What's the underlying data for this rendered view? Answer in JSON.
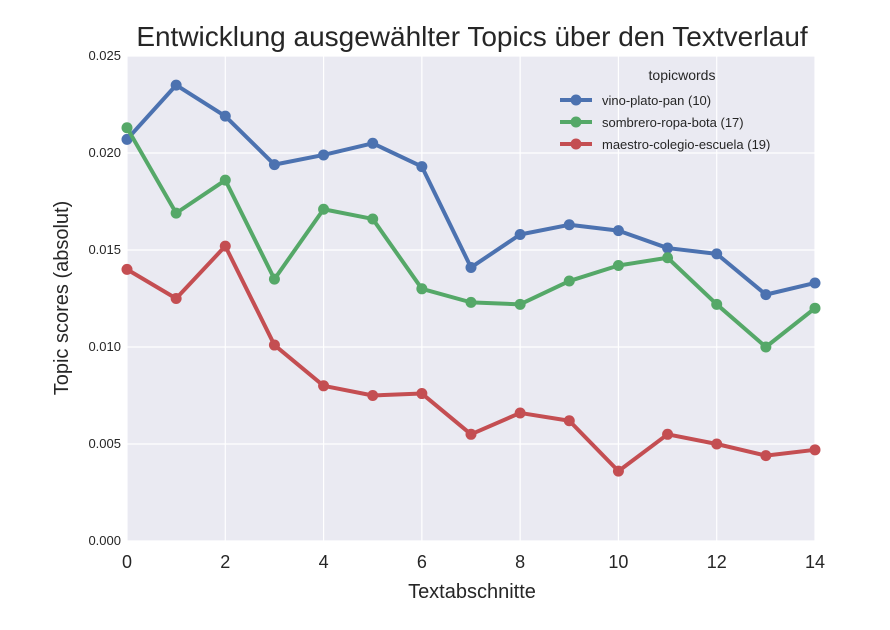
{
  "chart_data": {
    "type": "line",
    "title": "Entwicklung ausgewählter Topics über den Textverlauf",
    "xlabel": "Textabschnitte",
    "ylabel": "Topic scores (absolut)",
    "xlim": [
      0,
      14
    ],
    "ylim": [
      0.0,
      0.025
    ],
    "x": [
      0,
      1,
      2,
      3,
      4,
      5,
      6,
      7,
      8,
      9,
      10,
      11,
      12,
      13,
      14
    ],
    "xticks": [
      0,
      2,
      4,
      6,
      8,
      10,
      12,
      14
    ],
    "yticks": [
      0.0,
      0.005,
      0.01,
      0.015,
      0.02,
      0.025
    ],
    "ytick_labels": [
      "0.000",
      "0.005",
      "0.010",
      "0.015",
      "0.020",
      "0.025"
    ],
    "grid": true,
    "legend": {
      "title": "topicwords",
      "placement": "top-right"
    },
    "series": [
      {
        "name": "vino-plato-pan (10)",
        "color": "#4c72b0",
        "values": [
          0.0207,
          0.0235,
          0.0219,
          0.0194,
          0.0199,
          0.0205,
          0.0193,
          0.0141,
          0.0158,
          0.0163,
          0.016,
          0.0151,
          0.0148,
          0.0127,
          0.0133
        ]
      },
      {
        "name": "sombrero-ropa-bota (17)",
        "color": "#55a868",
        "values": [
          0.0213,
          0.0169,
          0.0186,
          0.0135,
          0.0171,
          0.0166,
          0.013,
          0.0123,
          0.0122,
          0.0134,
          0.0142,
          0.0146,
          0.0122,
          0.01,
          0.012
        ]
      },
      {
        "name": "maestro-colegio-escuela (19)",
        "color": "#c44e52",
        "values": [
          0.014,
          0.0125,
          0.0152,
          0.0101,
          0.008,
          0.0075,
          0.0076,
          0.0055,
          0.0066,
          0.0062,
          0.0036,
          0.0055,
          0.005,
          0.0044,
          0.0047
        ]
      }
    ]
  }
}
